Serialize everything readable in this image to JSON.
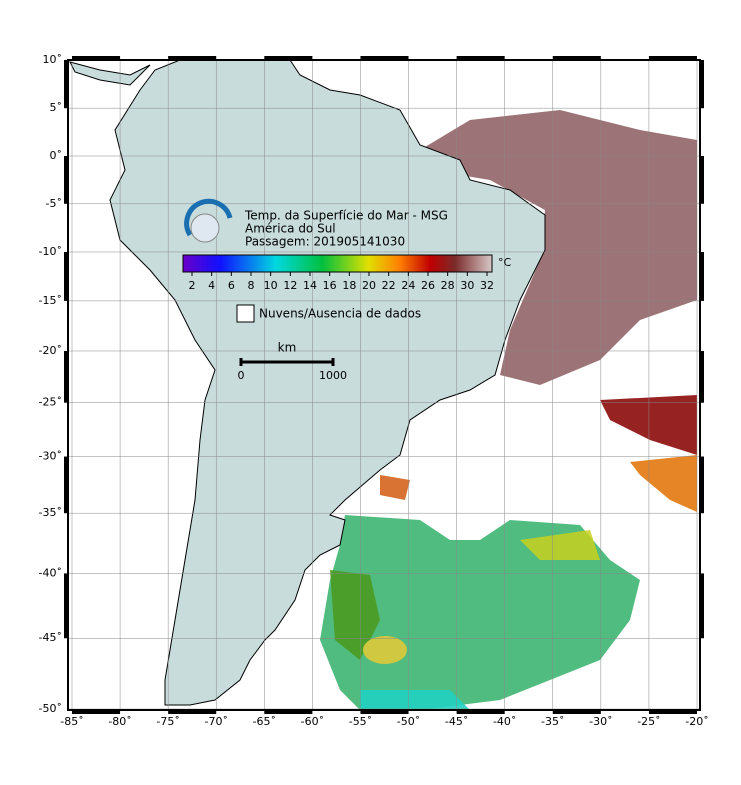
{
  "map": {
    "title_lines": [
      "Temp. da Superfície do Mar - MSG",
      "América do Sul",
      "Passagem: 201905141030"
    ],
    "colorbar": {
      "unit": "°C",
      "ticks": [
        2,
        4,
        6,
        8,
        10,
        12,
        14,
        16,
        18,
        20,
        22,
        24,
        26,
        28,
        30,
        32
      ]
    },
    "legend": "Nuvens/Ausencia de dados",
    "scale": {
      "unit": "km",
      "labels": [
        "0",
        "1000"
      ]
    },
    "lon_ticks": [
      {
        "value": -85,
        "label": "-85˚"
      },
      {
        "value": -80,
        "label": "-80˚"
      },
      {
        "value": -75,
        "label": "-75˚"
      },
      {
        "value": -70,
        "label": "-70˚"
      },
      {
        "value": -65,
        "label": "-65˚"
      },
      {
        "value": -60,
        "label": "-60˚"
      },
      {
        "value": -55,
        "label": "-55˚"
      },
      {
        "value": -50,
        "label": "-50˚"
      },
      {
        "value": -45,
        "label": "-45˚"
      },
      {
        "value": -40,
        "label": "-40˚"
      },
      {
        "value": -35,
        "label": "-35˚"
      },
      {
        "value": -30,
        "label": "-30˚"
      },
      {
        "value": -25,
        "label": "-25˚"
      },
      {
        "value": -20,
        "label": "-20˚"
      }
    ],
    "lat_ticks": [
      {
        "value": 10,
        "label": "10˚"
      },
      {
        "value": 5,
        "label": "5˚"
      },
      {
        "value": 0,
        "label": "0˚"
      },
      {
        "value": -5,
        "label": "-5˚"
      },
      {
        "value": -10,
        "label": "-10˚"
      },
      {
        "value": -15,
        "label": "-15˚"
      },
      {
        "value": -20,
        "label": "-20˚"
      },
      {
        "value": -25,
        "label": "-25˚"
      },
      {
        "value": -30,
        "label": "-30˚"
      },
      {
        "value": -35,
        "label": "-35˚"
      },
      {
        "value": -40,
        "label": "-40˚"
      },
      {
        "value": -45,
        "label": "-45˚"
      },
      {
        "value": -50,
        "label": "-50˚"
      }
    ]
  }
}
